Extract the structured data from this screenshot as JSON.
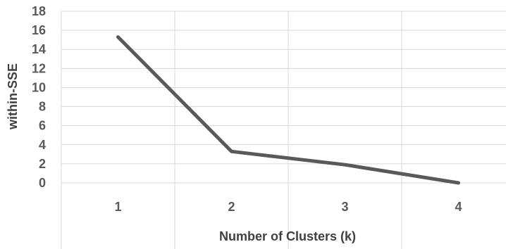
{
  "chart_data": {
    "type": "line",
    "x": [
      1,
      2,
      3,
      4
    ],
    "series": [
      {
        "values": [
          15.3,
          3.3,
          1.9,
          0.0
        ],
        "color": "#595959"
      }
    ],
    "title": "",
    "xlabel": "Number of Clusters (k)",
    "ylabel": "within-SSE",
    "ylim": [
      0,
      18
    ],
    "yticks": [
      "0",
      "2",
      "4",
      "6",
      "8",
      "10",
      "12",
      "14",
      "16",
      "18"
    ],
    "xticks": [
      "1",
      "2",
      "3",
      "4"
    ],
    "grid": true,
    "legend": "none",
    "colors": {
      "line": "#595959",
      "grid": "#d9d9d9"
    }
  }
}
